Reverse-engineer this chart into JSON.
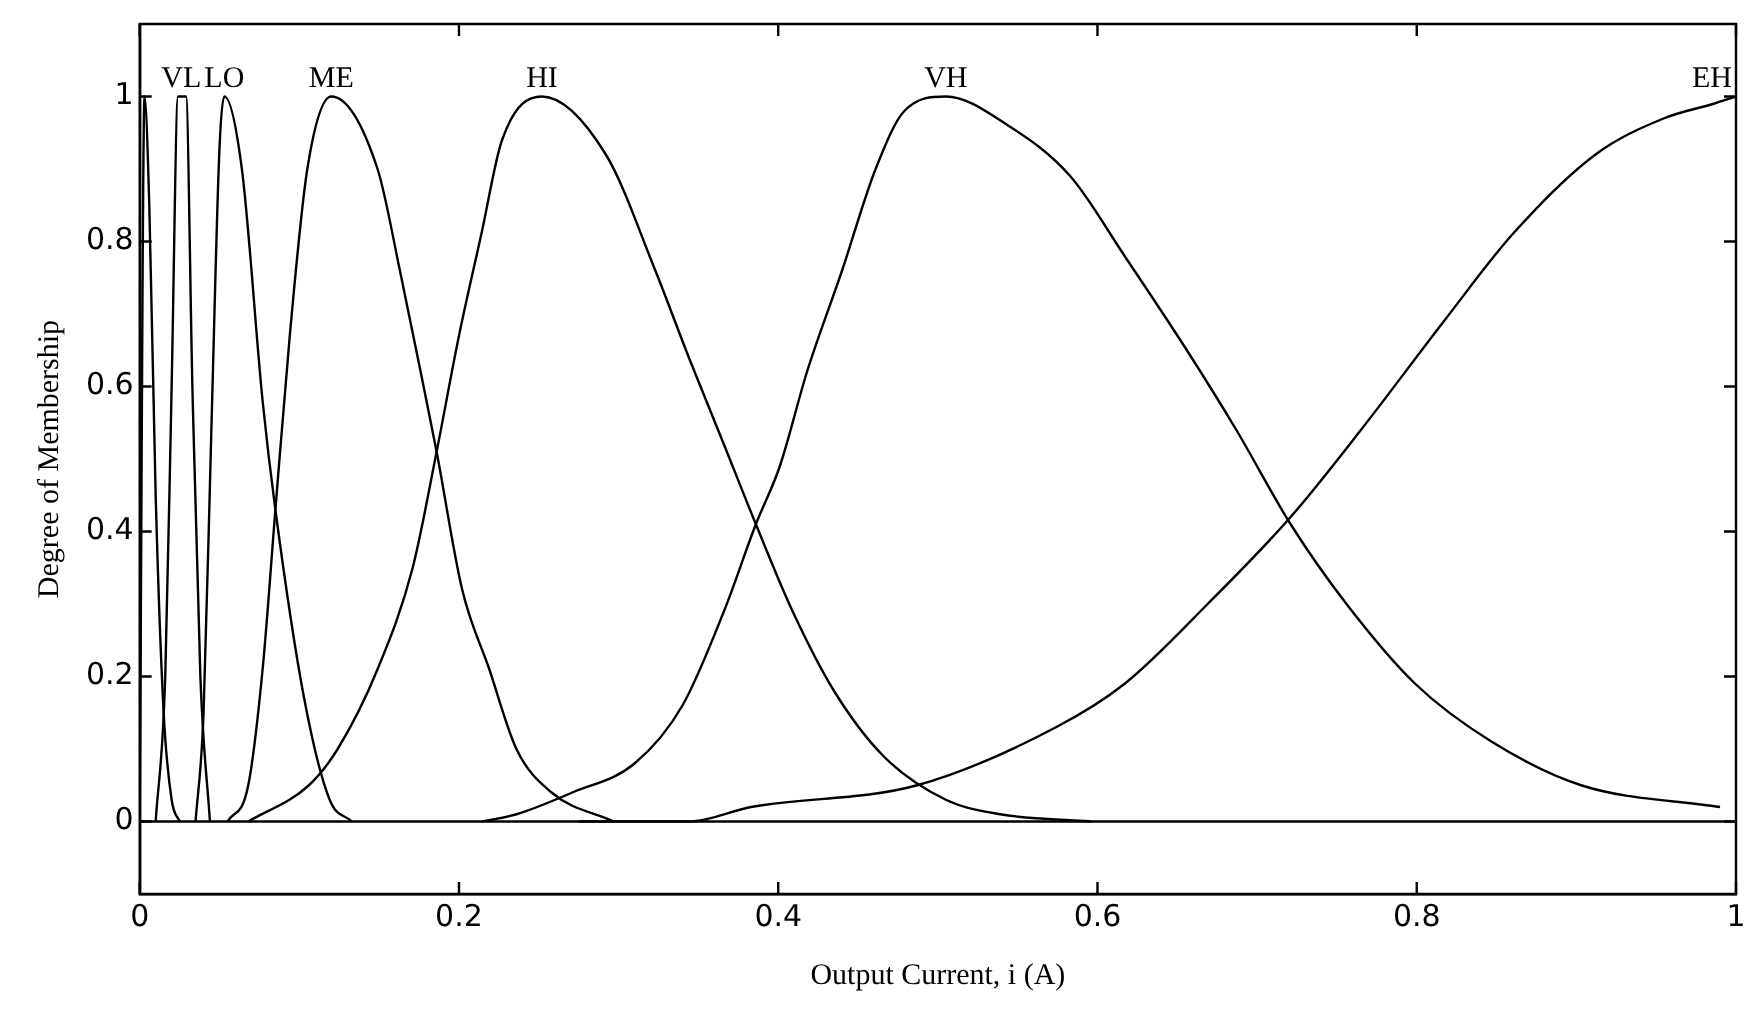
{
  "chart_data": {
    "type": "line",
    "xlabel": "Output Current, i (A)",
    "ylabel": "Degree of Membership",
    "xlim": [
      0,
      1
    ],
    "ylim": [
      -0.1,
      1.1
    ],
    "xticks": [
      0,
      0.2,
      0.4,
      0.6,
      0.8,
      1
    ],
    "yticks": [
      0,
      0.2,
      0.4,
      0.6,
      0.8,
      1
    ],
    "grid": false,
    "legend": false,
    "marker": "none",
    "line_style": "solid",
    "ref_lines": [
      {
        "axis": "y",
        "value": 0,
        "color": "#000000"
      }
    ],
    "annotations": [
      {
        "text": "VL",
        "x": 0.026,
        "y": 1
      },
      {
        "text": "LO",
        "x": 0.053,
        "y": 1
      },
      {
        "text": "ME",
        "x": 0.12,
        "y": 1
      },
      {
        "text": "HI",
        "x": 0.252,
        "y": 1
      },
      {
        "text": "VH",
        "x": 0.505,
        "y": 1
      },
      {
        "text": "EH",
        "x": 1,
        "y": 1
      }
    ],
    "series": [
      {
        "color": "#000000",
        "x": [
          0,
          0.003,
          0.006,
          0.01,
          0.015,
          0.02,
          0.025
        ],
        "values": [
          0,
          1,
          0.85,
          0.45,
          0.15,
          0.03,
          0
        ]
      },
      {
        "color": "#000000",
        "x": [
          0.01,
          0.016,
          0.02,
          0.024,
          0.029,
          0.033,
          0.038,
          0.044
        ],
        "values": [
          0,
          0.2,
          0.6,
          1,
          1,
          0.6,
          0.2,
          0
        ]
      },
      {
        "color": "#000000",
        "x": [
          0.035,
          0.04,
          0.045,
          0.05,
          0.053,
          0.064,
          0.077,
          0.085,
          0.103,
          0.119,
          0.133
        ],
        "values": [
          0,
          0.15,
          0.55,
          0.93,
          1,
          0.9,
          0.58,
          0.43,
          0.17,
          0.03,
          0
        ]
      },
      {
        "color": "#000000",
        "x": [
          0.055,
          0.068,
          0.077,
          0.085,
          0.094,
          0.105,
          0.12,
          0.149,
          0.163,
          0.176,
          0.186,
          0.202,
          0.219,
          0.236,
          0.258,
          0.297
        ],
        "values": [
          0,
          0.05,
          0.21,
          0.43,
          0.67,
          0.9,
          1,
          0.9,
          0.76,
          0.62,
          0.51,
          0.32,
          0.21,
          0.1,
          0.04,
          0
        ]
      },
      {
        "color": "#000000",
        "x": [
          0.068,
          0.106,
          0.124,
          0.149,
          0.171,
          0.186,
          0.2,
          0.214,
          0.227,
          0.252,
          0.292,
          0.323,
          0.344,
          0.366,
          0.386,
          0.409,
          0.435,
          0.466,
          0.505,
          0.539,
          0.596
        ],
        "values": [
          0,
          0.05,
          0.1,
          0.21,
          0.35,
          0.51,
          0.67,
          0.81,
          0.94,
          1,
          0.92,
          0.76,
          0.64,
          0.52,
          0.41,
          0.29,
          0.18,
          0.09,
          0.03,
          0.01,
          0
        ]
      },
      {
        "color": "#000000",
        "x": [
          0.214,
          0.236,
          0.271,
          0.31,
          0.34,
          0.366,
          0.386,
          0.401,
          0.418,
          0.44,
          0.461,
          0.479,
          0.505,
          0.544,
          0.583,
          0.617,
          0.656,
          0.687,
          0.721,
          0.756,
          0.799,
          0.847,
          0.903,
          0.99
        ],
        "values": [
          0,
          0.01,
          0.04,
          0.08,
          0.16,
          0.29,
          0.41,
          0.49,
          0.62,
          0.76,
          0.9,
          0.98,
          1,
          0.96,
          0.89,
          0.78,
          0.65,
          0.54,
          0.41,
          0.3,
          0.19,
          0.11,
          0.05,
          0.02
        ]
      },
      {
        "color": "#000000",
        "x": [
          0.275,
          0.344,
          0.383,
          0.487,
          0.574,
          0.617,
          0.669,
          0.721,
          0.765,
          0.817,
          0.86,
          0.912,
          0.955,
          0.986,
          1
        ],
        "values": [
          0,
          0,
          0.02,
          0.05,
          0.13,
          0.19,
          0.3,
          0.42,
          0.54,
          0.69,
          0.81,
          0.92,
          0.97,
          0.99,
          1
        ]
      }
    ]
  }
}
